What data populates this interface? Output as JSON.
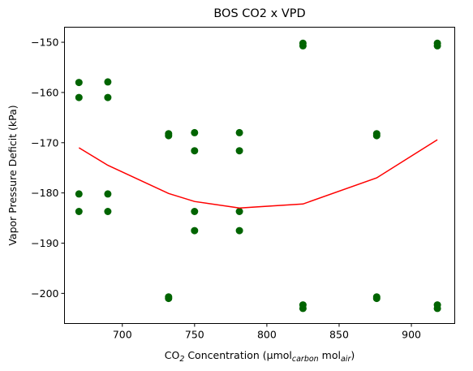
{
  "chart_data": {
    "type": "scatter",
    "title": "BOS CO2 x VPD",
    "xlabel": {
      "base": "CO",
      "sub": "2",
      "mid": " Concentration (µmol",
      "sub_carbon": "carbon",
      "mol": " mol",
      "sub_air": "air",
      "close": ")"
    },
    "ylabel": "Vapor Pressure Deficit (kPa)",
    "xlim": [
      660,
      930
    ],
    "ylim": [
      -206,
      -147
    ],
    "xticks": [
      700,
      750,
      800,
      850,
      900
    ],
    "yticks": [
      -150,
      -160,
      -170,
      -180,
      -190,
      -200
    ],
    "grid": false,
    "colors": {
      "points": "#006400",
      "trend": "#ff0000"
    },
    "scatter": {
      "x": [
        670,
        670,
        670,
        670,
        690,
        690,
        690,
        690,
        732,
        732,
        732,
        732,
        750,
        750,
        750,
        750,
        781,
        781,
        781,
        781,
        825,
        825,
        825,
        825,
        876,
        876,
        876,
        876,
        918,
        918,
        918,
        918
      ],
      "y": [
        -158,
        -161,
        -180.2,
        -183.7,
        -157.9,
        -161,
        -180.2,
        -183.7,
        -168.2,
        -168.6,
        -200.7,
        -201,
        -168,
        -171.6,
        -183.7,
        -187.5,
        -168,
        -171.6,
        -183.7,
        -187.5,
        -150.2,
        -150.7,
        -202.3,
        -203,
        -168.2,
        -168.6,
        -200.7,
        -201,
        -150.2,
        -150.7,
        -202.3,
        -203
      ]
    },
    "trend": {
      "x": [
        670,
        690,
        732,
        750,
        781,
        825,
        876,
        918
      ],
      "y": [
        -171,
        -174.5,
        -180.1,
        -181.7,
        -183,
        -182.2,
        -177,
        -169.4
      ]
    }
  }
}
